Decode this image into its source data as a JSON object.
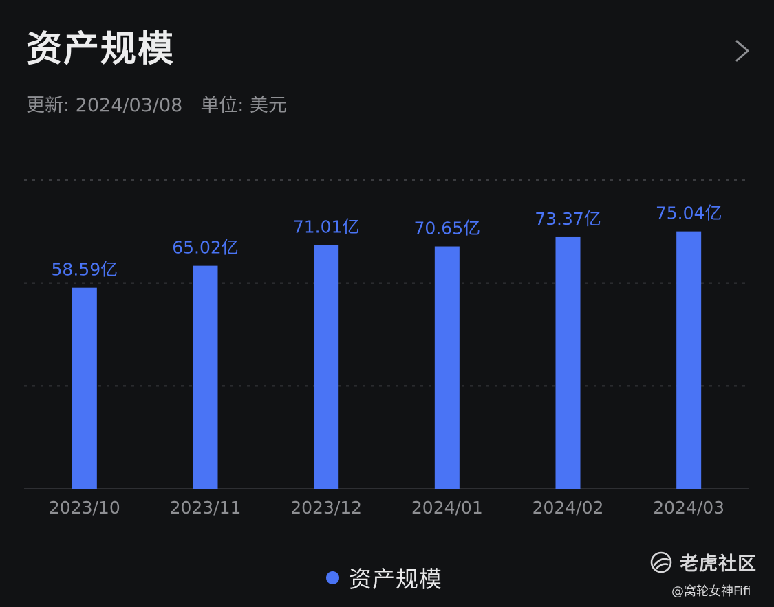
{
  "header": {
    "title": "资产规模",
    "update_text": "更新: 2024/03/08",
    "unit_text": "单位: 美元",
    "chevron_icon": "chevron-right-icon"
  },
  "legend": {
    "label": "资产规模",
    "color": "#4a74f5"
  },
  "watermark": {
    "name": "老虎社区",
    "user": "@窝轮女神Fifi",
    "icon": "tiger-logo-icon"
  },
  "colors": {
    "background": "#111214",
    "bar": "#4a74f5",
    "value_label": "#4a74f5",
    "gridline": "#3a3b3f",
    "axis_text": "#8e8f93"
  },
  "chart_data": {
    "type": "bar",
    "title": "资产规模",
    "categories": [
      "2023/10",
      "2023/11",
      "2023/12",
      "2024/01",
      "2024/02",
      "2024/03"
    ],
    "series": [
      {
        "name": "资产规模",
        "values": [
          58.59,
          65.02,
          71.01,
          70.65,
          73.37,
          75.04
        ],
        "labels": [
          "58.59亿",
          "65.02亿",
          "71.01亿",
          "70.65亿",
          "73.37亿",
          "75.04亿"
        ]
      }
    ],
    "xlabel": "",
    "ylabel": "",
    "ylim": [
      0,
      90
    ],
    "grid": true,
    "y_tick_labels_visible": false,
    "legend_position": "bottom-center"
  }
}
